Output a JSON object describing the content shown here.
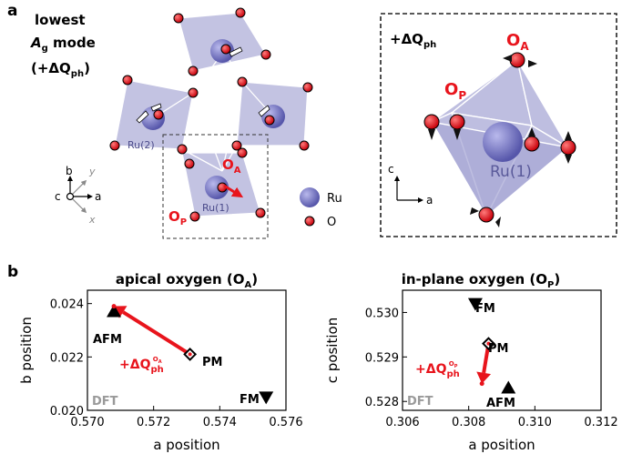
{
  "panel_a": {
    "letter": "a",
    "mode_line1": "lowest",
    "mode_line2_A": "A",
    "mode_line2_sub": "g",
    "mode_line2_rest": " mode",
    "mode_line3": "(+ΔQ",
    "mode_line3_sub": "ph",
    "mode_line3_end": ")",
    "ru2_label": "Ru(2)",
    "ru1_label": "Ru(1)",
    "oa_label": "O",
    "oa_sub": "A",
    "op_label": "O",
    "op_sub": "P",
    "legend_ru": "Ru",
    "legend_o": "O",
    "axis_b": "b",
    "axis_a": "a",
    "axis_c": "c",
    "inset_title": "+ΔQ",
    "inset_title_sub": "ph",
    "inset_oa": "O",
    "inset_oa_sub": "A",
    "inset_op": "O",
    "inset_op_sub": "P",
    "inset_ru1": "Ru(1)",
    "inset_axis_c": "c",
    "inset_axis_a": "a",
    "colors": {
      "octahedron": "#b8b8dd",
      "ru": "#6f6fc0",
      "o": "#e8141c",
      "arrow": "#e8141c"
    }
  },
  "panel_b": {
    "letter": "b",
    "dft_label": "DFT",
    "pm_label": "PM",
    "fm_label": "FM",
    "afm_label": "AFM",
    "dq_label": "+ΔQ",
    "dq_sub": "ph",
    "oa_sup": "O",
    "oa_sup_sub": "A",
    "op_sup": "O",
    "op_sup_sub": "P"
  },
  "chart_data": [
    {
      "type": "scatter",
      "title": "apical oxygen (O_A)",
      "title_main": "apical oxygen (O",
      "title_sub": "A",
      "title_end": ")",
      "xlabel": "a position",
      "ylabel": "b position",
      "xlim": [
        0.57,
        0.576
      ],
      "ylim": [
        0.02,
        0.0245
      ],
      "xticks": [
        "0.570",
        "0.572",
        "0.574",
        "0.576"
      ],
      "yticks": [
        "0.020",
        "0.022",
        "0.024"
      ],
      "points": [
        {
          "name": "PM",
          "x": 0.5731,
          "y": 0.0221,
          "marker": "diamond"
        },
        {
          "name": "AFM",
          "x": 0.5708,
          "y": 0.0237,
          "marker": "triangle-up"
        },
        {
          "name": "FM",
          "x": 0.5754,
          "y": 0.0205,
          "marker": "triangle-down"
        }
      ],
      "displacement": {
        "from": [
          0.5731,
          0.0221
        ],
        "to": [
          0.5708,
          0.0239
        ]
      }
    },
    {
      "type": "scatter",
      "title": "in-plane oxygen (O_P)",
      "title_main": "in-plane oxygen (O",
      "title_sub": "P",
      "title_end": ")",
      "xlabel": "a position",
      "ylabel": "c position",
      "xlim": [
        0.306,
        0.312
      ],
      "ylim": [
        0.5278,
        0.5305
      ],
      "xticks": [
        "0.306",
        "0.308",
        "0.310",
        "0.312"
      ],
      "yticks": [
        "0.528",
        "0.529",
        "0.530"
      ],
      "points": [
        {
          "name": "PM",
          "x": 0.3086,
          "y": 0.5293,
          "marker": "diamond"
        },
        {
          "name": "AFM",
          "x": 0.3092,
          "y": 0.5283,
          "marker": "triangle-up"
        },
        {
          "name": "FM",
          "x": 0.3082,
          "y": 0.5302,
          "marker": "triangle-down"
        }
      ],
      "displacement": {
        "from": [
          0.3086,
          0.5293
        ],
        "to": [
          0.3084,
          0.5284
        ]
      }
    }
  ]
}
